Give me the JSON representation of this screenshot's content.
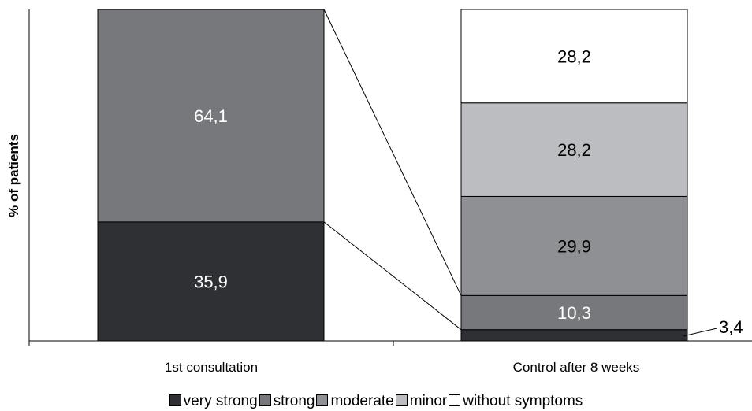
{
  "chart_data": {
    "type": "bar",
    "stacked": true,
    "categories": [
      "1st consultation",
      "Control after 8 weeks"
    ],
    "ylabel": "% of patients",
    "ylim": [
      0,
      100
    ],
    "grid": false,
    "legend_placement": "bottom",
    "series": [
      {
        "name": "very strong",
        "color": "#2e3033",
        "label_color": "#ffffff",
        "values": [
          35.9,
          3.4
        ],
        "labels": [
          "35,9",
          "3,4"
        ]
      },
      {
        "name": "strong",
        "color": "#77787c",
        "label_color": "#ffffff",
        "values": [
          64.1,
          10.3
        ],
        "labels": [
          "64,1",
          "10,3"
        ]
      },
      {
        "name": "moderate",
        "color": "#8f9094",
        "label_color": "#000000",
        "values": [
          0,
          29.9
        ],
        "labels": [
          "",
          "29,9"
        ]
      },
      {
        "name": "minor",
        "color": "#bcbdc0",
        "label_color": "#000000",
        "values": [
          0,
          28.2
        ],
        "labels": [
          "",
          "28,2"
        ]
      },
      {
        "name": "without symptoms",
        "color": "#ffffff",
        "label_color": "#000000",
        "values": [
          0,
          28.2
        ],
        "labels": [
          "",
          "28,2"
        ]
      }
    ]
  }
}
